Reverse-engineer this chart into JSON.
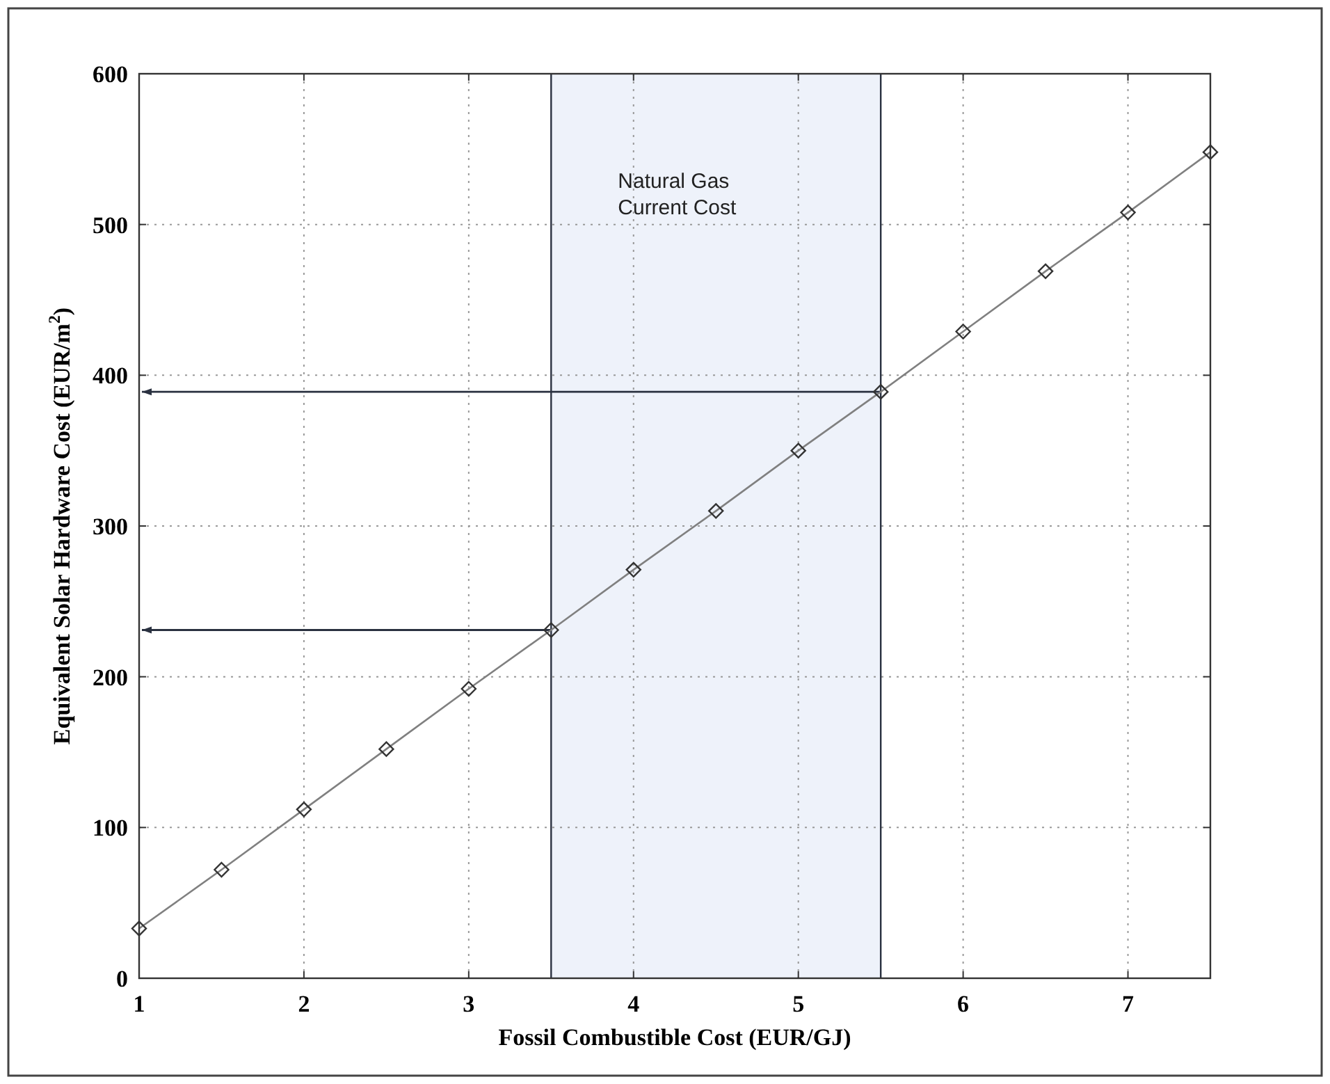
{
  "chart_data": {
    "type": "line",
    "xlabel": "Fossil Combustible Cost (EUR/GJ)",
    "ylabel": "Equivalent Solar Hardware Cost (EUR/m$^{2}$)",
    "x": [
      1,
      1.5,
      2,
      2.5,
      3,
      3.5,
      4,
      4.5,
      5,
      5.5,
      6,
      6.5,
      7,
      7.5
    ],
    "series": [
      {
        "color": "#808080",
        "values": [
          33,
          72,
          112,
          152,
          192,
          231,
          271,
          310,
          350,
          389,
          429,
          469,
          508,
          548
        ]
      }
    ],
    "marker": "diamond",
    "line_style": "solid",
    "xlim": [
      1,
      7.5
    ],
    "xticks": [
      1,
      2,
      3,
      4,
      5,
      6,
      7
    ],
    "ylim": [
      0,
      600
    ],
    "yticks": [
      0,
      100,
      200,
      300,
      400,
      500,
      600
    ],
    "grid": true,
    "bands": [
      {
        "axis": "x",
        "from": 3.5,
        "to": 5.5,
        "label": "Natural Gas\nCurrent Cost",
        "color": "#eef2fa"
      }
    ],
    "ref_lines": [
      {
        "axis": "x",
        "value": 3.5,
        "color": "#2a3140"
      },
      {
        "axis": "x",
        "value": 5.5,
        "color": "#2a3140"
      },
      {
        "axis": "y",
        "value": 231,
        "color": "#2a3140"
      },
      {
        "axis": "y",
        "value": 389,
        "color": "#2a3140"
      }
    ]
  }
}
